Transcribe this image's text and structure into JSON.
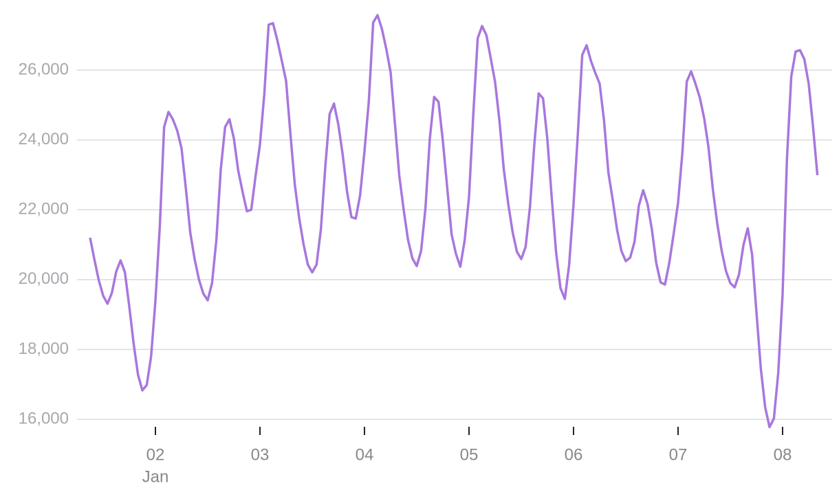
{
  "chart_data": {
    "type": "line",
    "x": [
      1.375,
      1.4167,
      1.4583,
      1.5,
      1.5417,
      1.5833,
      1.625,
      1.6667,
      1.7083,
      1.75,
      1.7917,
      1.8333,
      1.875,
      1.9167,
      1.9583,
      2,
      2.0417,
      2.0833,
      2.125,
      2.1667,
      2.2083,
      2.25,
      2.2917,
      2.3333,
      2.375,
      2.4167,
      2.4583,
      2.5,
      2.5417,
      2.5833,
      2.625,
      2.6667,
      2.7083,
      2.75,
      2.7917,
      2.8333,
      2.875,
      2.9167,
      2.9583,
      3,
      3.0417,
      3.0833,
      3.125,
      3.1667,
      3.2083,
      3.25,
      3.2917,
      3.3333,
      3.375,
      3.4167,
      3.4583,
      3.5,
      3.5417,
      3.5833,
      3.625,
      3.6667,
      3.7083,
      3.75,
      3.7917,
      3.8333,
      3.875,
      3.9167,
      3.9583,
      4,
      4.0417,
      4.0833,
      4.125,
      4.1667,
      4.2083,
      4.25,
      4.2917,
      4.3333,
      4.375,
      4.4167,
      4.4583,
      4.5,
      4.5417,
      4.5833,
      4.625,
      4.6667,
      4.7083,
      4.75,
      4.7917,
      4.8333,
      4.875,
      4.9167,
      4.9583,
      5,
      5.0417,
      5.0833,
      5.125,
      5.1667,
      5.2083,
      5.25,
      5.2917,
      5.3333,
      5.375,
      5.4167,
      5.4583,
      5.5,
      5.5417,
      5.5833,
      5.625,
      5.6667,
      5.7083,
      5.75,
      5.7917,
      5.8333,
      5.875,
      5.9167,
      5.9583,
      6,
      6.0417,
      6.0833,
      6.125,
      6.1667,
      6.2083,
      6.25,
      6.2917,
      6.3333,
      6.375,
      6.4167,
      6.4583,
      6.5,
      6.5417,
      6.5833,
      6.625,
      6.6667,
      6.7083,
      6.75,
      6.7917,
      6.8333,
      6.875,
      6.9167,
      6.9583,
      7,
      7.0417,
      7.0833,
      7.125,
      7.1667,
      7.2083,
      7.25,
      7.2917,
      7.3333,
      7.375,
      7.4167,
      7.4583,
      7.5,
      7.5417,
      7.5833,
      7.625,
      7.6667,
      7.7083,
      7.75,
      7.7917,
      7.8333,
      7.875,
      7.9167,
      7.9583,
      8,
      8.0417,
      8.0833,
      8.125,
      8.1667,
      8.2083,
      8.25,
      8.2917,
      8.3333
    ],
    "series": [
      {
        "color": "#a877dd",
        "values": [
          21200,
          20570,
          19980,
          19540,
          19310,
          19620,
          20230,
          20550,
          20210,
          19230,
          18170,
          17280,
          16830,
          16980,
          17790,
          19390,
          21510,
          24370,
          24800,
          24590,
          24270,
          23760,
          22600,
          21350,
          20590,
          20000,
          19600,
          19410,
          19900,
          21140,
          23150,
          24370,
          24590,
          24050,
          23130,
          22520,
          21960,
          22000,
          22970,
          23870,
          25310,
          27300,
          27340,
          26850,
          26280,
          25690,
          24170,
          22730,
          21770,
          21020,
          20430,
          20210,
          20430,
          21450,
          23220,
          24740,
          25040,
          24440,
          23580,
          22520,
          21790,
          21750,
          22420,
          23680,
          25110,
          27360,
          27570,
          27180,
          26610,
          25940,
          24460,
          22970,
          22000,
          21140,
          20610,
          20390,
          20820,
          22040,
          24030,
          25230,
          25090,
          23970,
          22630,
          21300,
          20740,
          20370,
          21120,
          22360,
          24760,
          26910,
          27260,
          27000,
          26330,
          25650,
          24540,
          23150,
          22180,
          21370,
          20800,
          20590,
          20940,
          22080,
          23870,
          25330,
          25190,
          24010,
          22340,
          20780,
          19760,
          19450,
          20430,
          22160,
          24190,
          26430,
          26710,
          26260,
          25920,
          25610,
          24560,
          23070,
          22280,
          21430,
          20820,
          20530,
          20630,
          21080,
          22120,
          22560,
          22160,
          21430,
          20470,
          19920,
          19860,
          20490,
          21320,
          22200,
          23640,
          25670,
          25960,
          25610,
          25210,
          24620,
          23780,
          22580,
          21610,
          20840,
          20250,
          19900,
          19780,
          20150,
          20980,
          21470,
          20720,
          19070,
          17460,
          16350,
          15780,
          16020,
          17320,
          19580,
          23440,
          25820,
          26530,
          26570,
          26310,
          25610,
          24370,
          22990
        ]
      }
    ],
    "xlim": [
      1.25,
      8.474
    ],
    "xticks": [
      {
        "value": 2,
        "label": "02"
      },
      {
        "value": 3,
        "label": "03"
      },
      {
        "value": 4,
        "label": "04"
      },
      {
        "value": 5,
        "label": "05"
      },
      {
        "value": 6,
        "label": "06"
      },
      {
        "value": 7,
        "label": "07"
      },
      {
        "value": 8,
        "label": "08"
      }
    ],
    "x_sublabel": "Jan",
    "ylim": [
      15650,
      27750
    ],
    "yticks": [
      {
        "value": 16000,
        "label": "16,000"
      },
      {
        "value": 18000,
        "label": "18,000"
      },
      {
        "value": 20000,
        "label": "20,000"
      },
      {
        "value": 22000,
        "label": "22,000"
      },
      {
        "value": 24000,
        "label": "24,000"
      },
      {
        "value": 26000,
        "label": "26,000"
      }
    ],
    "grid": true
  }
}
